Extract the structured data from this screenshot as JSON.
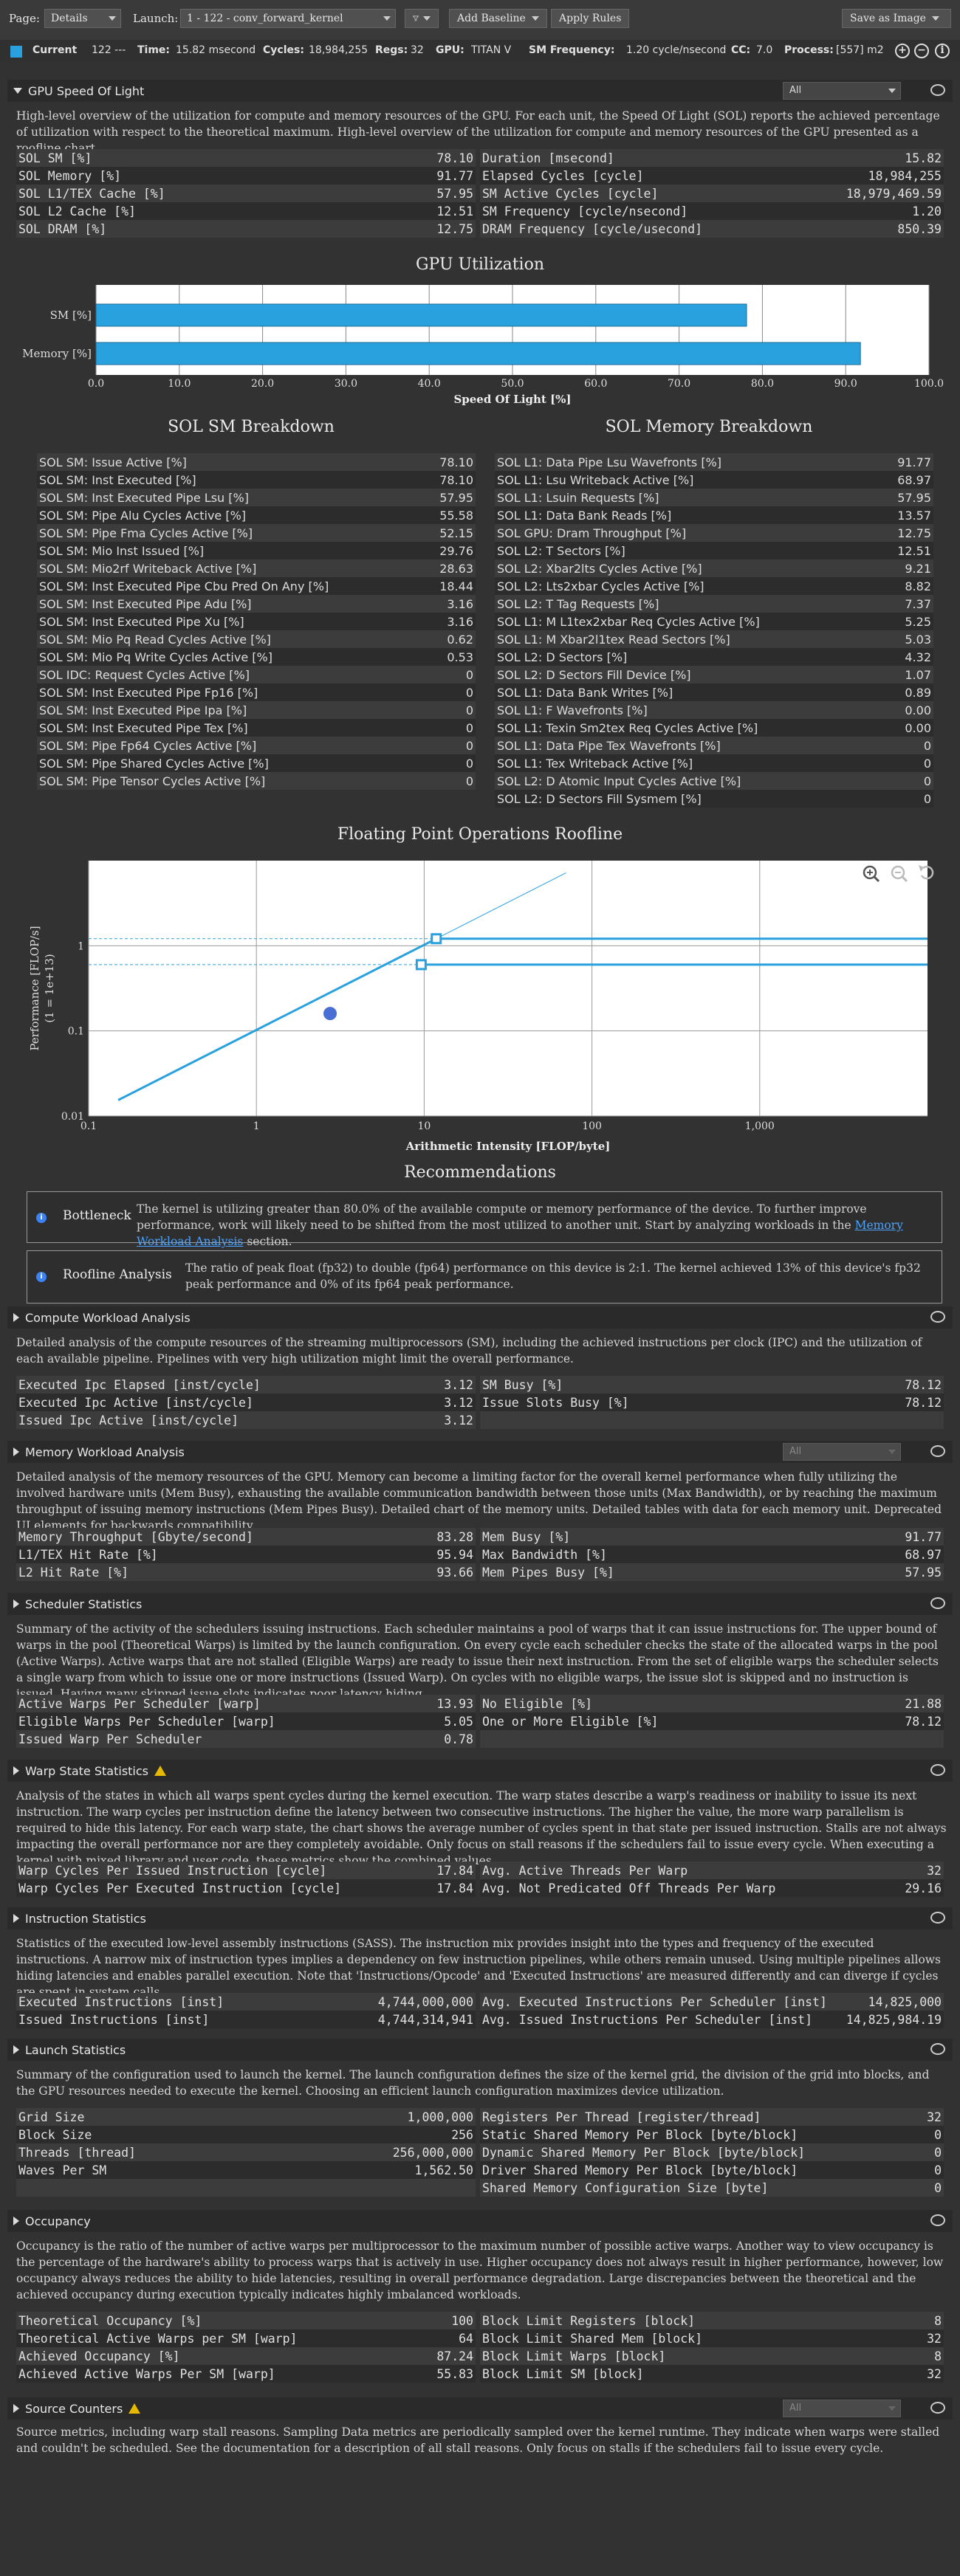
{
  "toolbar": {
    "page_label": "Page:",
    "page_value": "Details",
    "launch_label": "Launch:",
    "launch_value": "1 -  122 - conv_forward_kernel",
    "add_baseline": "Add Baseline",
    "apply_rules": "Apply Rules",
    "save_as_image": "Save as Image"
  },
  "status": {
    "current": "Current",
    "id": "122 ---",
    "time_label": "Time:",
    "time": "15.82 msecond",
    "cycles_label": "Cycles:",
    "cycles": "18,984,255",
    "regs_label": "Regs:",
    "regs": "32",
    "gpu_label": "GPU:",
    "gpu": "TITAN V",
    "smf_label": "SM Frequency:",
    "smf": "1.20 cycle/nsecond",
    "cc_label": "CC:",
    "cc": "7.0",
    "process_label": "Process:",
    "process": "[557] m2"
  },
  "sol": {
    "title": "GPU Speed Of Light",
    "filter": "All",
    "desc": "High-level overview of the utilization for compute and memory resources of the GPU. For each unit, the Speed Of Light (SOL) reports the achieved percentage of utilization with respect to the theoretical maximum. High-level overview of the utilization for compute and memory resources of the GPU presented as a roofline chart.",
    "left": [
      {
        "k": "SOL SM [%]",
        "v": "78.10"
      },
      {
        "k": "SOL Memory [%]",
        "v": "91.77"
      },
      {
        "k": "SOL L1/TEX Cache [%]",
        "v": "57.95"
      },
      {
        "k": "SOL L2 Cache [%]",
        "v": "12.51"
      },
      {
        "k": "SOL DRAM [%]",
        "v": "12.75"
      }
    ],
    "right": [
      {
        "k": "Duration [msecond]",
        "v": "15.82"
      },
      {
        "k": "Elapsed Cycles [cycle]",
        "v": "18,984,255"
      },
      {
        "k": "SM Active Cycles [cycle]",
        "v": "18,979,469.59"
      },
      {
        "k": "SM Frequency [cycle/nsecond]",
        "v": "1.20"
      },
      {
        "k": "DRAM Frequency [cycle/usecond]",
        "v": "850.39"
      }
    ]
  },
  "chart_data": [
    {
      "type": "bar",
      "title": "GPU Utilization",
      "categories": [
        "SM [%]",
        "Memory [%]"
      ],
      "values": [
        78.1,
        91.77
      ],
      "xlabel": "Speed Of Light [%]",
      "xlim": [
        0,
        100
      ],
      "ticks": [
        "0.0",
        "10.0",
        "20.0",
        "30.0",
        "40.0",
        "50.0",
        "60.0",
        "70.0",
        "80.0",
        "90.0",
        "100.0"
      ],
      "color": "#28a1de"
    },
    {
      "type": "line",
      "title": "Floating Point Operations Roofline",
      "xlabel": "Arithmetic Intensity [FLOP/byte]",
      "ylabel": "Performance [FLOP/s]",
      "ylabel2": "(1 = 1e+13)",
      "xscale": "log",
      "yscale": "log",
      "xlim": [
        0.1,
        10000
      ],
      "ylim": [
        0.01,
        10
      ],
      "xticks": [
        "0.1",
        "1",
        "10",
        "100",
        "1,000"
      ],
      "yticks": [
        "1",
        "0.1",
        "0.01"
      ],
      "roof_fp32": 1.21,
      "roof_fp64": 0.6,
      "ridge_fp32": 11.8,
      "ridge_fp64": 9.6,
      "achieved": {
        "x": 2.75,
        "y": 0.16
      },
      "color": "#28a1de"
    }
  ],
  "breakdown": {
    "sm_title": "SOL SM Breakdown",
    "mem_title": "SOL Memory Breakdown",
    "sm": [
      {
        "k": "SOL SM: Issue Active [%]",
        "v": "78.10"
      },
      {
        "k": "SOL SM: Inst Executed [%]",
        "v": "78.10"
      },
      {
        "k": "SOL SM: Inst Executed Pipe Lsu [%]",
        "v": "57.95"
      },
      {
        "k": "SOL SM: Pipe Alu Cycles Active [%]",
        "v": "55.58"
      },
      {
        "k": "SOL SM: Pipe Fma Cycles Active [%]",
        "v": "52.15"
      },
      {
        "k": "SOL SM: Mio Inst Issued [%]",
        "v": "29.76"
      },
      {
        "k": "SOL SM: Mio2rf Writeback Active [%]",
        "v": "28.63"
      },
      {
        "k": "SOL SM: Inst Executed Pipe Cbu Pred On Any [%]",
        "v": "18.44"
      },
      {
        "k": "SOL SM: Inst Executed Pipe Adu [%]",
        "v": "3.16"
      },
      {
        "k": "SOL SM: Inst Executed Pipe Xu [%]",
        "v": "3.16"
      },
      {
        "k": "SOL SM: Mio Pq Read Cycles Active [%]",
        "v": "0.62"
      },
      {
        "k": "SOL SM: Mio Pq Write Cycles Active [%]",
        "v": "0.53"
      },
      {
        "k": "SOL IDC: Request Cycles Active [%]",
        "v": "0"
      },
      {
        "k": "SOL SM: Inst Executed Pipe Fp16 [%]",
        "v": "0"
      },
      {
        "k": "SOL SM: Inst Executed Pipe Ipa [%]",
        "v": "0"
      },
      {
        "k": "SOL SM: Inst Executed Pipe Tex [%]",
        "v": "0"
      },
      {
        "k": "SOL SM: Pipe Fp64 Cycles Active [%]",
        "v": "0"
      },
      {
        "k": "SOL SM: Pipe Shared Cycles Active [%]",
        "v": "0"
      },
      {
        "k": "SOL SM: Pipe Tensor Cycles Active [%]",
        "v": "0"
      }
    ],
    "mem": [
      {
        "k": "SOL L1: Data Pipe Lsu Wavefronts [%]",
        "v": "91.77"
      },
      {
        "k": "SOL L1: Lsu Writeback Active [%]",
        "v": "68.97"
      },
      {
        "k": "SOL L1: Lsuin Requests [%]",
        "v": "57.95"
      },
      {
        "k": "SOL L1: Data Bank Reads [%]",
        "v": "13.57"
      },
      {
        "k": "SOL GPU: Dram Throughput [%]",
        "v": "12.75"
      },
      {
        "k": "SOL L2: T Sectors [%]",
        "v": "12.51"
      },
      {
        "k": "SOL L2: Xbar2lts Cycles Active [%]",
        "v": "9.21"
      },
      {
        "k": "SOL L2: Lts2xbar Cycles Active [%]",
        "v": "8.82"
      },
      {
        "k": "SOL L2: T Tag Requests [%]",
        "v": "7.37"
      },
      {
        "k": "SOL L1: M L1tex2xbar Req Cycles Active [%]",
        "v": "5.25"
      },
      {
        "k": "SOL L1: M Xbar2l1tex Read Sectors [%]",
        "v": "5.03"
      },
      {
        "k": "SOL L2: D Sectors [%]",
        "v": "4.32"
      },
      {
        "k": "SOL L2: D Sectors Fill Device [%]",
        "v": "1.07"
      },
      {
        "k": "SOL L1: Data Bank Writes [%]",
        "v": "0.89"
      },
      {
        "k": "SOL L1: F Wavefronts [%]",
        "v": "0.00"
      },
      {
        "k": "SOL L1: Texin Sm2tex Req Cycles Active [%]",
        "v": "0.00"
      },
      {
        "k": "SOL L1: Data Pipe Tex Wavefronts [%]",
        "v": "0"
      },
      {
        "k": "SOL L1: Tex Writeback Active [%]",
        "v": "0"
      },
      {
        "k": "SOL L2: D Atomic Input Cycles Active [%]",
        "v": "0"
      },
      {
        "k": "SOL L2: D Sectors Fill Sysmem [%]",
        "v": "0"
      }
    ]
  },
  "recommendations": {
    "title": "Recommendations",
    "bottleneck_title": "Bottleneck",
    "bottleneck_text": "The kernel is utilizing greater than 80.0% of the available compute or memory performance of the device. To further improve performance, work will likely need to be shifted from the most utilized to another unit. Start by analyzing workloads in the",
    "bottleneck_link": "Memory Workload Analysis",
    "bottleneck_tail": "section.",
    "roofline_title": "Roofline Analysis",
    "roofline_text": "The ratio of peak float (fp32) to double (fp64) performance on this device is 2:1. The kernel achieved 13% of this device's fp32 peak performance and 0% of its fp64 peak performance."
  },
  "compute": {
    "title": "Compute Workload Analysis",
    "desc": "Detailed analysis of the compute resources of the streaming multiprocessors (SM), including the achieved instructions per clock (IPC) and the utilization of each available pipeline. Pipelines with very high utilization might limit the overall performance.",
    "left": [
      {
        "k": "Executed Ipc Elapsed [inst/cycle]",
        "v": "3.12"
      },
      {
        "k": "Executed Ipc Active [inst/cycle]",
        "v": "3.12"
      },
      {
        "k": "Issued Ipc Active [inst/cycle]",
        "v": "3.12"
      }
    ],
    "right": [
      {
        "k": "SM Busy [%]",
        "v": "78.12"
      },
      {
        "k": "Issue Slots Busy [%]",
        "v": "78.12"
      },
      {
        "k": "",
        "v": ""
      }
    ]
  },
  "memory": {
    "title": "Memory Workload Analysis",
    "filter": "All",
    "desc": "Detailed analysis of the memory resources of the GPU. Memory can become a limiting factor for the overall kernel performance when fully utilizing the involved hardware units (Mem Busy), exhausting the available communication bandwidth between those units (Max Bandwidth), or by reaching the maximum throughput of issuing memory instructions (Mem Pipes Busy). Detailed chart of the memory units. Detailed tables with data for each memory unit. Deprecated UI elements for backwards compatibility.",
    "left": [
      {
        "k": "Memory Throughput [Gbyte/second]",
        "v": "83.28"
      },
      {
        "k": "L1/TEX Hit Rate [%]",
        "v": "95.94"
      },
      {
        "k": "L2 Hit Rate [%]",
        "v": "93.66"
      }
    ],
    "right": [
      {
        "k": "Mem Busy [%]",
        "v": "91.77"
      },
      {
        "k": "Max Bandwidth [%]",
        "v": "68.97"
      },
      {
        "k": "Mem Pipes Busy [%]",
        "v": "57.95"
      }
    ]
  },
  "scheduler": {
    "title": "Scheduler Statistics",
    "desc": "Summary of the activity of the schedulers issuing instructions. Each scheduler maintains a pool of warps that it can issue instructions for. The upper bound of warps in the pool (Theoretical Warps) is limited by the launch configuration. On every cycle each scheduler checks the state of the allocated warps in the pool (Active Warps). Active warps that are not stalled (Eligible Warps) are ready to issue their next instruction. From the set of eligible warps the scheduler selects a single warp from which to issue one or more instructions (Issued Warp). On cycles with no eligible warps, the issue slot is skipped and no instruction is issued. Having many skipped issue slots indicates poor latency hiding.",
    "left": [
      {
        "k": "Active Warps Per Scheduler [warp]",
        "v": "13.93"
      },
      {
        "k": "Eligible Warps Per Scheduler [warp]",
        "v": "5.05"
      },
      {
        "k": "Issued Warp Per Scheduler",
        "v": "0.78"
      }
    ],
    "right": [
      {
        "k": "No Eligible [%]",
        "v": "21.88"
      },
      {
        "k": "One or More Eligible [%]",
        "v": "78.12"
      },
      {
        "k": "",
        "v": ""
      }
    ]
  },
  "warp": {
    "title": "Warp State Statistics",
    "desc": "Analysis of the states in which all warps spent cycles during the kernel execution. The warp states describe a warp's readiness or inability to issue its next instruction. The warp cycles per instruction define the latency between two consecutive instructions. The higher the value, the more warp parallelism is required to hide this latency. For each warp state, the chart shows the average number of cycles spent in that state per issued instruction. Stalls are not always impacting the overall performance nor are they completely avoidable. Only focus on stall reasons if the schedulers fail to issue every cycle. When executing a kernel with mixed library and user code, these metrics show the combined values.",
    "left": [
      {
        "k": "Warp Cycles Per Issued Instruction [cycle]",
        "v": "17.84"
      },
      {
        "k": "Warp Cycles Per Executed Instruction [cycle]",
        "v": "17.84"
      }
    ],
    "right": [
      {
        "k": "Avg. Active Threads Per Warp",
        "v": "32"
      },
      {
        "k": "Avg. Not Predicated Off Threads Per Warp",
        "v": "29.16"
      }
    ]
  },
  "instruction": {
    "title": "Instruction Statistics",
    "desc": "Statistics of the executed low-level assembly instructions (SASS). The instruction mix provides insight into the types and frequency of the executed instructions. A narrow mix of instruction types implies a dependency on few instruction pipelines, while others remain unused. Using multiple pipelines allows hiding latencies and enables parallel execution. Note that 'Instructions/Opcode' and 'Executed Instructions' are measured differently and can diverge if cycles are spent in system calls.",
    "left": [
      {
        "k": "Executed Instructions [inst]",
        "v": "4,744,000,000"
      },
      {
        "k": "Issued Instructions [inst]",
        "v": "4,744,314,941"
      }
    ],
    "right": [
      {
        "k": "Avg. Executed Instructions Per Scheduler [inst]",
        "v": "14,825,000"
      },
      {
        "k": "Avg. Issued Instructions Per Scheduler [inst]",
        "v": "14,825,984.19"
      }
    ]
  },
  "launch": {
    "title": "Launch Statistics",
    "desc": "Summary of the configuration used to launch the kernel. The launch configuration defines the size of the kernel grid, the division of the grid into blocks, and the GPU resources needed to execute the kernel. Choosing an efficient launch configuration maximizes device utilization.",
    "left": [
      {
        "k": "Grid Size",
        "v": "1,000,000"
      },
      {
        "k": "Block Size",
        "v": "256"
      },
      {
        "k": "Threads [thread]",
        "v": "256,000,000"
      },
      {
        "k": "Waves Per SM",
        "v": "1,562.50"
      },
      {
        "k": "",
        "v": ""
      }
    ],
    "right": [
      {
        "k": "Registers Per Thread [register/thread]",
        "v": "32"
      },
      {
        "k": "Static Shared Memory Per Block [byte/block]",
        "v": "0"
      },
      {
        "k": "Dynamic Shared Memory Per Block [byte/block]",
        "v": "0"
      },
      {
        "k": "Driver Shared Memory Per Block [byte/block]",
        "v": "0"
      },
      {
        "k": "Shared Memory Configuration Size [byte]",
        "v": "0"
      }
    ]
  },
  "occupancy": {
    "title": "Occupancy",
    "desc": "Occupancy is the ratio of the number of active warps per multiprocessor to the maximum number of possible active warps. Another way to view occupancy is the percentage of the hardware's ability to process warps that is actively in use. Higher occupancy does not always result in higher performance, however, low occupancy always reduces the ability to hide latencies, resulting in overall performance degradation. Large discrepancies between the theoretical and the achieved occupancy during execution typically indicates highly imbalanced workloads.",
    "left": [
      {
        "k": "Theoretical Occupancy [%]",
        "v": "100"
      },
      {
        "k": "Theoretical Active Warps per SM [warp]",
        "v": "64"
      },
      {
        "k": "Achieved Occupancy [%]",
        "v": "87.24"
      },
      {
        "k": "Achieved Active Warps Per SM [warp]",
        "v": "55.83"
      }
    ],
    "right": [
      {
        "k": "Block Limit Registers [block]",
        "v": "8"
      },
      {
        "k": "Block Limit Shared Mem [block]",
        "v": "32"
      },
      {
        "k": "Block Limit Warps [block]",
        "v": "8"
      },
      {
        "k": "Block Limit SM [block]",
        "v": "32"
      }
    ]
  },
  "source": {
    "title": "Source Counters",
    "filter": "All",
    "desc": "Source metrics, including warp stall reasons. Sampling Data metrics are periodically sampled over the kernel runtime. They indicate when warps were stalled and couldn't be scheduled. See the documentation for a description of all stall reasons. Only focus on stalls if the schedulers fail to issue every cycle."
  }
}
